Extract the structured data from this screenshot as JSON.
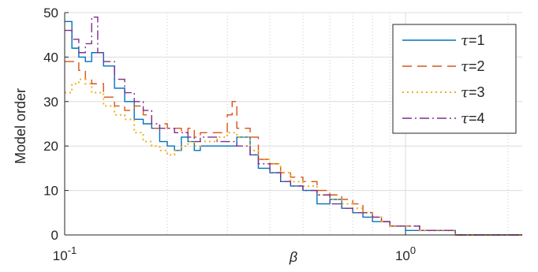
{
  "chart_data": {
    "type": "line",
    "xlabel": "β",
    "ylabel": "Model order",
    "xscale": "log",
    "xlim": [
      0.1,
      2.2
    ],
    "ylim": [
      0,
      50
    ],
    "grid": true,
    "legend_position": "top-right",
    "x_ticks": [
      {
        "value": 0.1,
        "base": "10",
        "exp": "-1"
      },
      {
        "value": 1,
        "base": "10",
        "exp": "0"
      }
    ],
    "y_ticks": [
      {
        "value": 0,
        "label": "0"
      },
      {
        "value": 10,
        "label": "10"
      },
      {
        "value": 20,
        "label": "20"
      },
      {
        "value": 30,
        "label": "30"
      },
      {
        "value": 40,
        "label": "40"
      },
      {
        "value": 50,
        "label": "50"
      }
    ],
    "series": [
      {
        "name": "τ=1",
        "legend_symbol": "τ",
        "legend_value": "=1",
        "color": "#0072BD",
        "dash": "",
        "x": [
          0.1,
          0.105,
          0.11,
          0.115,
          0.12,
          0.13,
          0.14,
          0.15,
          0.16,
          0.17,
          0.18,
          0.19,
          0.2,
          0.21,
          0.22,
          0.23,
          0.24,
          0.25,
          0.26,
          0.28,
          0.3,
          0.32,
          0.35,
          0.37,
          0.4,
          0.43,
          0.46,
          0.5,
          0.55,
          0.6,
          0.65,
          0.7,
          0.75,
          0.8,
          0.85,
          0.9,
          1.0,
          1.1,
          1.2,
          1.4,
          1.6,
          2.2
        ],
        "y": [
          48,
          42,
          40,
          39,
          41,
          38,
          33,
          30,
          26,
          25,
          24,
          21,
          20,
          19,
          22,
          21,
          19,
          20,
          20,
          20,
          20,
          22,
          18,
          15,
          14,
          12,
          11,
          10,
          7,
          8,
          6,
          5,
          4,
          3,
          3,
          2,
          1,
          1,
          1,
          0,
          0,
          0
        ]
      },
      {
        "name": "τ=2",
        "legend_symbol": "τ",
        "legend_value": "=2",
        "color": "#D95319",
        "dash": "12,7",
        "x": [
          0.1,
          0.105,
          0.11,
          0.115,
          0.12,
          0.13,
          0.14,
          0.15,
          0.16,
          0.17,
          0.18,
          0.19,
          0.2,
          0.21,
          0.22,
          0.23,
          0.24,
          0.25,
          0.26,
          0.28,
          0.3,
          0.31,
          0.32,
          0.35,
          0.37,
          0.4,
          0.43,
          0.46,
          0.5,
          0.55,
          0.6,
          0.65,
          0.7,
          0.75,
          0.8,
          0.85,
          0.9,
          1.0,
          1.1,
          1.2,
          1.4,
          1.6,
          2.2
        ],
        "y": [
          39,
          39,
          37,
          35,
          34,
          31,
          29,
          28,
          29,
          27,
          24,
          25,
          24,
          24,
          23,
          24,
          22,
          23,
          23,
          23,
          27,
          30,
          24,
          22,
          17,
          16,
          14,
          13,
          12,
          10,
          9,
          8,
          7,
          5,
          4,
          3,
          2,
          2,
          1,
          1,
          0,
          0,
          0
        ]
      },
      {
        "name": "τ=3",
        "legend_symbol": "τ",
        "legend_value": "=3",
        "color": "#EDB120",
        "dash": "2,4",
        "x": [
          0.1,
          0.105,
          0.11,
          0.115,
          0.12,
          0.13,
          0.14,
          0.15,
          0.16,
          0.17,
          0.18,
          0.19,
          0.2,
          0.21,
          0.22,
          0.23,
          0.24,
          0.25,
          0.26,
          0.28,
          0.3,
          0.32,
          0.35,
          0.37,
          0.4,
          0.43,
          0.46,
          0.5,
          0.55,
          0.6,
          0.65,
          0.7,
          0.75,
          0.8,
          0.85,
          0.9,
          1.0,
          1.1,
          1.2,
          1.4,
          1.6,
          2.2
        ],
        "y": [
          32,
          34,
          35,
          34,
          32,
          29,
          27,
          26,
          23,
          21,
          20,
          19,
          18,
          19,
          20,
          21,
          20,
          21,
          21,
          22,
          23,
          22,
          19,
          17,
          16,
          14,
          12,
          11,
          9,
          8,
          7,
          6,
          5,
          4,
          3,
          2,
          2,
          1,
          1,
          0,
          0,
          0
        ]
      },
      {
        "name": "τ=4",
        "legend_symbol": "τ",
        "legend_value": "=4",
        "color": "#7E2F8E",
        "dash": "12,4,2,4",
        "x": [
          0.1,
          0.105,
          0.11,
          0.115,
          0.12,
          0.125,
          0.13,
          0.14,
          0.15,
          0.16,
          0.17,
          0.18,
          0.19,
          0.2,
          0.21,
          0.22,
          0.23,
          0.24,
          0.25,
          0.26,
          0.28,
          0.3,
          0.32,
          0.35,
          0.37,
          0.4,
          0.43,
          0.46,
          0.5,
          0.55,
          0.6,
          0.65,
          0.7,
          0.75,
          0.8,
          0.85,
          0.9,
          1.0,
          1.1,
          1.2,
          1.4,
          1.6,
          2.2
        ],
        "y": [
          46,
          44,
          41,
          43,
          49,
          41,
          39,
          35,
          32,
          30,
          28,
          25,
          24,
          24,
          23,
          23,
          22,
          21,
          22,
          22,
          21,
          21,
          20,
          18,
          16,
          14,
          12,
          11,
          10,
          9,
          7,
          6,
          5,
          5,
          4,
          3,
          2,
          2,
          1,
          1,
          0,
          0,
          0
        ]
      }
    ]
  }
}
